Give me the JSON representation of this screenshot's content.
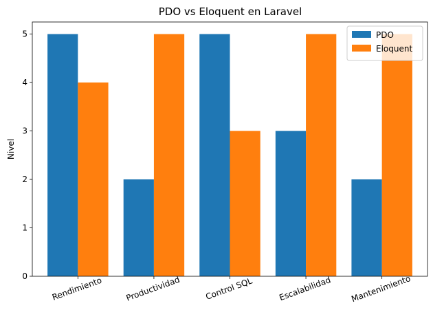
{
  "chart_data": {
    "type": "bar",
    "title": "PDO vs Eloquent en Laravel",
    "xlabel": "",
    "ylabel": "Nivel",
    "categories": [
      "Rendimiento",
      "Productividad",
      "Control SQL",
      "Escalabilidad",
      "Mantenimiento"
    ],
    "series": [
      {
        "name": "PDO",
        "color": "#1f77b4",
        "values": [
          5,
          2,
          5,
          3,
          2
        ]
      },
      {
        "name": "Eloquent",
        "color": "#ff7f0e",
        "values": [
          4,
          5,
          3,
          5,
          5
        ]
      }
    ],
    "ylim": [
      0,
      5.25
    ],
    "yticks": [
      0,
      1,
      2,
      3,
      4,
      5
    ],
    "x_tick_rotation_deg": -20,
    "grid": false,
    "legend_position": "top-right"
  }
}
